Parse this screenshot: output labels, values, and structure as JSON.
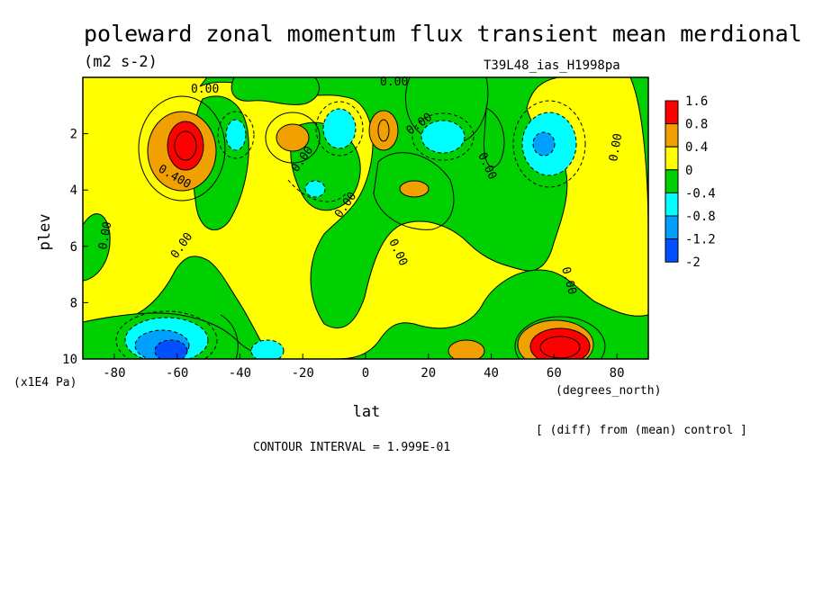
{
  "chart_data": {
    "type": "contour",
    "title": "poleward zonal momentum flux transient mean merdional",
    "units": "(m2 s-2)",
    "run_label": "T39L48_ias_H1998pa",
    "xlabel": "lat",
    "x_units": "(degrees_north)",
    "ylabel": "plev",
    "y_units": "(x1E4 Pa)",
    "xlim": [
      -90,
      90
    ],
    "ylim": [
      0,
      10
    ],
    "y_reversed": true,
    "x_ticks": [
      -80,
      -60,
      -40,
      -20,
      0,
      20,
      40,
      60,
      80
    ],
    "y_ticks": [
      2,
      4,
      6,
      8,
      10
    ],
    "colorbar": {
      "labels": [
        "1.6",
        "0.8",
        "0.4",
        "0",
        "-0.4",
        "-0.8",
        "-1.2",
        "-2"
      ],
      "colors": [
        "#ff0000",
        "#f0a000",
        "#ffff00",
        "#00d000",
        "#00ffff",
        "#00a0ff",
        "#0050ff"
      ]
    },
    "contour_labels": [
      "0.00",
      "0.400"
    ],
    "contour_interval_text": "CONTOUR INTERVAL = 1.999E-01",
    "note": "[ (diff) from (mean) control ]",
    "features": [
      {
        "lat": -57,
        "plev": 2.6,
        "value": 1.6
      },
      {
        "lat": 5,
        "plev": 1.9,
        "value": 0.8
      },
      {
        "lat": -23,
        "plev": 2.3,
        "value": 0.6
      },
      {
        "lat": 14,
        "plev": 3.9,
        "value": 0.5
      },
      {
        "lat": 58,
        "plev": 9.6,
        "value": 1.7
      },
      {
        "lat": 31,
        "plev": 9.7,
        "value": 0.5
      },
      {
        "lat": -63,
        "plev": 9.5,
        "value": -1.3
      },
      {
        "lat": -31,
        "plev": 9.7,
        "value": -0.6
      },
      {
        "lat": 58,
        "plev": 2.5,
        "value": -0.9
      },
      {
        "lat": -6,
        "plev": 1.8,
        "value": -0.5
      },
      {
        "lat": -45,
        "plev": 2.1,
        "value": -0.5
      },
      {
        "lat": 22,
        "plev": 2.4,
        "value": -0.5
      },
      {
        "lat": -16,
        "plev": 4.0,
        "value": -0.45
      }
    ]
  }
}
